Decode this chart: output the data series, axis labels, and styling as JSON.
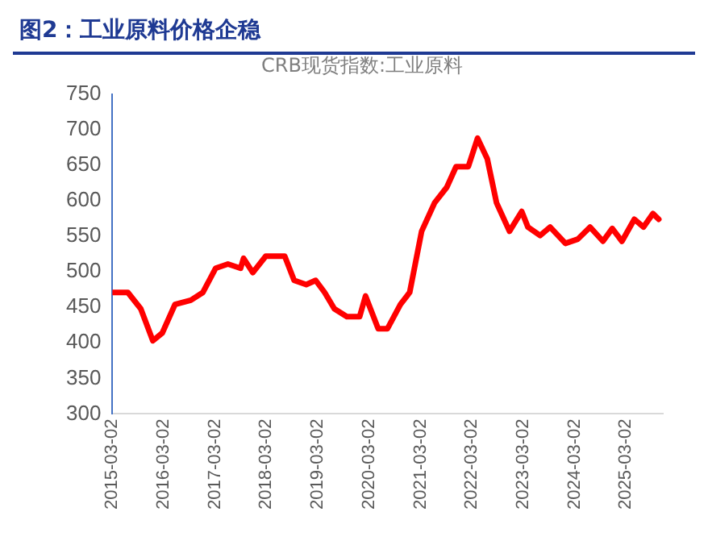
{
  "chart_data": {
    "type": "line",
    "title": "图2：工业原料价格企稳",
    "subtitle": "CRB现货指数:工业原料",
    "x": [
      "2015-03-02",
      "2015-06-20",
      "2015-09-20",
      "2015-12-15",
      "2016-02-20",
      "2016-05-20",
      "2016-09-10",
      "2016-12-05",
      "2017-03-05",
      "2017-06-01",
      "2017-08-30",
      "2017-09-20",
      "2017-11-25",
      "2018-02-25",
      "2018-07-10",
      "2018-09-15",
      "2018-12-10",
      "2019-02-15",
      "2019-04-20",
      "2019-06-28",
      "2019-09-25",
      "2019-12-25",
      "2020-02-05",
      "2020-05-05",
      "2020-07-10",
      "2020-10-10",
      "2020-12-15",
      "2021-03-10",
      "2021-06-10",
      "2021-09-05",
      "2021-11-10",
      "2022-02-05",
      "2022-04-12",
      "2022-06-20",
      "2022-08-25",
      "2022-11-25",
      "2023-02-20",
      "2023-04-05",
      "2023-07-01",
      "2023-09-10",
      "2023-12-28",
      "2024-03-25",
      "2024-06-20",
      "2024-09-20",
      "2024-11-25",
      "2025-02-02",
      "2025-05-01",
      "2025-07-05",
      "2025-09-10",
      "2025-10-22"
    ],
    "values": [
      471,
      471,
      448,
      403,
      414,
      454,
      460,
      471,
      505,
      511,
      505,
      519,
      499,
      522,
      522,
      488,
      482,
      488,
      471,
      448,
      437,
      437,
      466,
      420,
      420,
      454,
      471,
      557,
      597,
      619,
      648,
      648,
      688,
      659,
      597,
      557,
      585,
      563,
      551,
      563,
      540,
      546,
      563,
      543,
      561,
      543,
      574,
      563,
      582,
      574
    ],
    "color": "#ff0000",
    "xlim": [
      "2015-03-02",
      "2025-11-20"
    ],
    "xticks": [
      {
        "value": "2015-03-02",
        "label": "2015-03-02"
      },
      {
        "value": "2016-03-02",
        "label": "2016-03-02"
      },
      {
        "value": "2017-03-02",
        "label": "2017-03-02"
      },
      {
        "value": "2018-03-02",
        "label": "2018-03-02"
      },
      {
        "value": "2019-03-02",
        "label": "2019-03-02"
      },
      {
        "value": "2020-03-02",
        "label": "2020-03-02"
      },
      {
        "value": "2021-03-02",
        "label": "2021-03-02"
      },
      {
        "value": "2022-03-02",
        "label": "2022-03-02"
      },
      {
        "value": "2023-03-02",
        "label": "2023-03-02"
      },
      {
        "value": "2024-03-02",
        "label": "2024-03-02"
      },
      {
        "value": "2025-03-02",
        "label": "2025-03-02"
      }
    ],
    "ylim": [
      300,
      750
    ],
    "yticks": [
      300,
      350,
      400,
      450,
      500,
      550,
      600,
      650,
      700,
      750
    ],
    "grid": false,
    "legend": false,
    "marker": "none",
    "line_style": "solid"
  }
}
